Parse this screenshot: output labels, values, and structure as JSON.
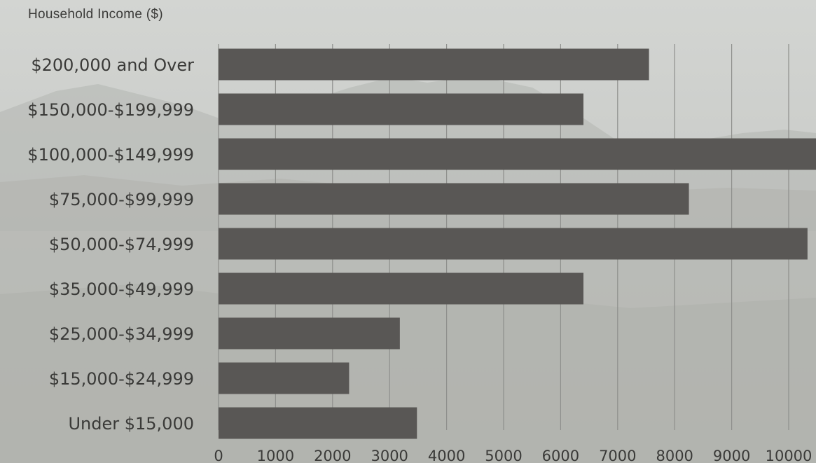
{
  "colors": {
    "bar": "#595755",
    "gridline": "#8e8f8c",
    "text": "#3a3a38"
  },
  "chart_data": {
    "type": "bar",
    "orientation": "horizontal",
    "title": "Household Income ($)",
    "categories": [
      "$200,000 and Over",
      "$150,000-$199,999",
      "$100,000-$149,999",
      "$75,000-$99,999",
      "$50,000-$74,999",
      "$35,000-$49,999",
      "$25,000-$34,999",
      "$15,000-$24,999",
      "Under $15,000"
    ],
    "values": [
      7550,
      6400,
      10500,
      8250,
      10330,
      6400,
      3180,
      2290,
      3480
    ],
    "xlim": [
      0,
      10500
    ],
    "x_ticks": [
      0,
      1000,
      2000,
      3000,
      4000,
      5000,
      6000,
      7000,
      8000,
      9000,
      10000
    ],
    "grid": true,
    "legend": "none"
  }
}
